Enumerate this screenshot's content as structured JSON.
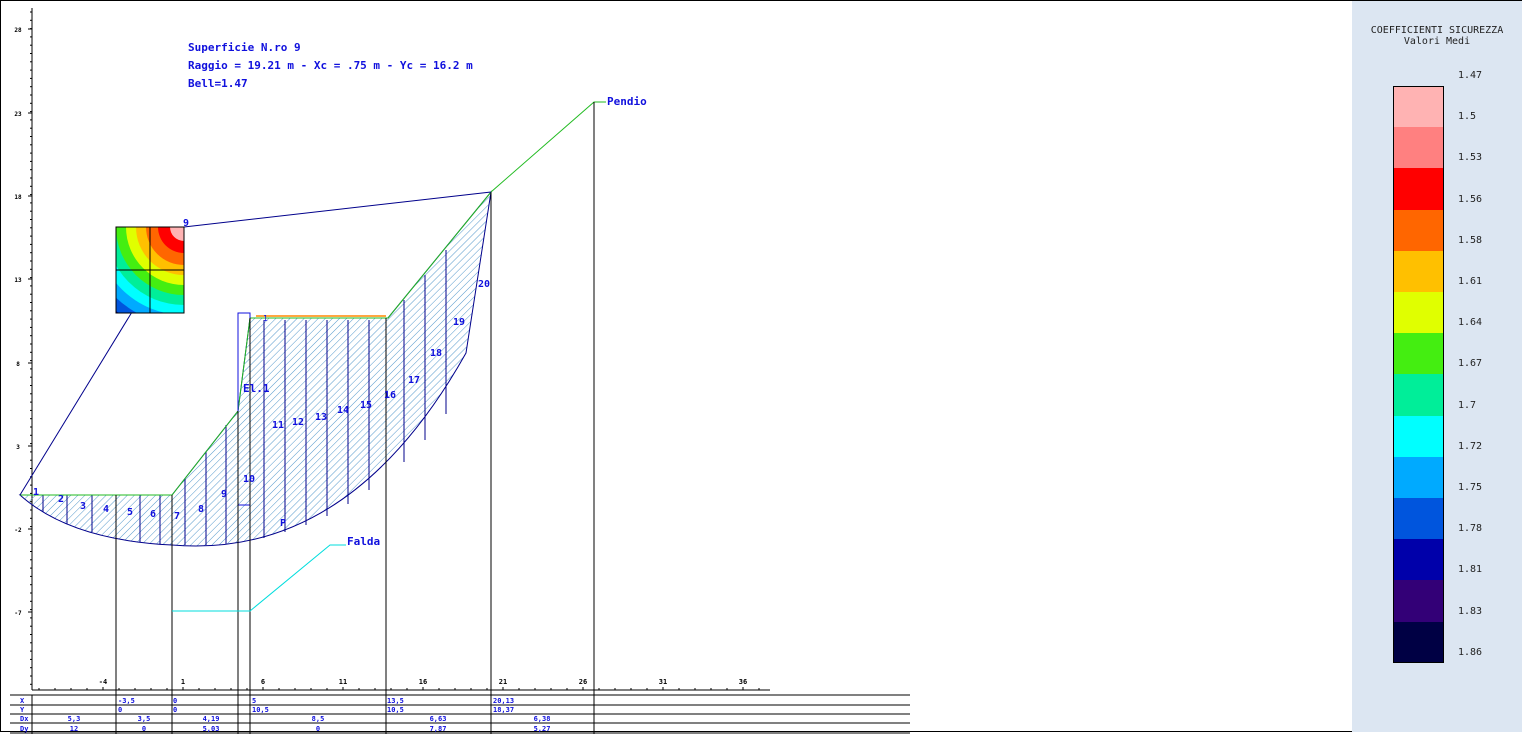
{
  "annotation": {
    "surface": "Superficie N.ro 9",
    "radius": "Raggio = 19.21 m - Xc = .75 m - Yc = 16.2 m",
    "fs": "Bell=1.47"
  },
  "labels": {
    "pendio": "Pendio",
    "falda": "Falda",
    "center": "9",
    "el": "El.1",
    "point": "P",
    "marker": "1"
  },
  "y_axis_ticks": [
    "28",
    "23",
    "18",
    "13",
    "8",
    "3",
    "-2",
    "-7"
  ],
  "x_axis_ticks": [
    "-4",
    "1",
    "6",
    "11",
    "16",
    "21",
    "26",
    "31",
    "36"
  ],
  "slices": [
    "1",
    "2",
    "3",
    "4",
    "5",
    "6",
    "7",
    "8",
    "9",
    "10",
    "11",
    "12",
    "13",
    "14",
    "15",
    "16",
    "17",
    "18",
    "19",
    "20"
  ],
  "table": {
    "row_headers": [
      "X",
      "Y",
      "Dx",
      "Dy"
    ],
    "X": [
      "-3,5",
      "0",
      "5",
      "13,5",
      "20,13"
    ],
    "Y": [
      "0",
      "0",
      "10,5",
      "10,5",
      "18,37"
    ],
    "Dx": [
      "5,3",
      "3,5",
      "4,19",
      "8,5",
      "6,63",
      "6,38"
    ],
    "Dy": [
      "12",
      "0",
      "5,03",
      "0",
      "7,87",
      "5,27"
    ]
  },
  "legend": {
    "title": "COEFFICIENTI SICUREZZA",
    "subtitle": "Valori Medi",
    "values": [
      "1.47",
      "1.5",
      "1.53",
      "1.56",
      "1.58",
      "1.61",
      "1.64",
      "1.67",
      "1.7",
      "1.72",
      "1.75",
      "1.78",
      "1.81",
      "1.83",
      "1.86"
    ],
    "colors": [
      "#ffb3b3",
      "#ff8080",
      "#ff0000",
      "#ff6600",
      "#ffc000",
      "#e0ff00",
      "#44ee11",
      "#00ee99",
      "#00ffff",
      "#00aaff",
      "#0055dd",
      "#0000aa",
      "#330077",
      "#000044"
    ]
  },
  "colors": {
    "slope": "#22bb22",
    "slip": "#00008b",
    "label": "#1010dd",
    "water": "#00dddd",
    "hatch": "#5599cc"
  }
}
